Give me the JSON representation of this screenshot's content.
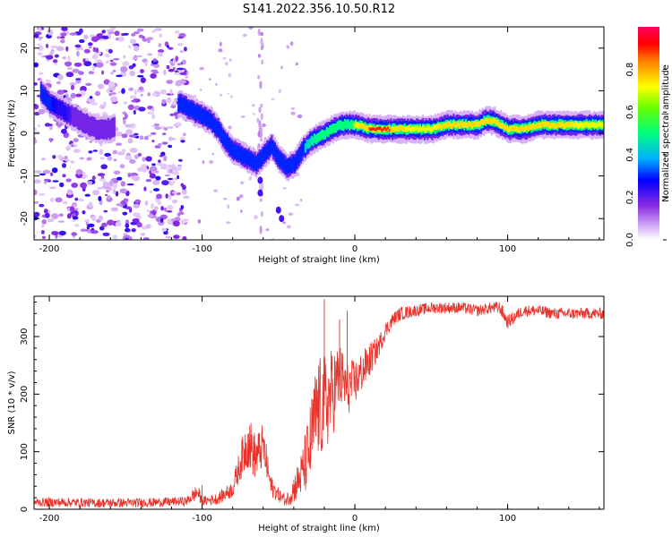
{
  "title": "S141.2022.356.10.50.R12",
  "chart_data": [
    {
      "type": "heatmap",
      "xlabel": "Height of straight line (km)",
      "ylabel": "Frequency (Hz)",
      "xlim": [
        -210,
        163
      ],
      "ylim": [
        -25,
        25
      ],
      "xticks": [
        -200,
        -100,
        0,
        100
      ],
      "yticks": [
        -20,
        -10,
        0,
        10,
        20
      ],
      "colorbar": {
        "label": "Normalized spectral amplitude",
        "range": [
          0,
          1
        ],
        "ticks": [
          0.0,
          0.2,
          0.4,
          0.6,
          0.8
        ],
        "tick_labels": [
          "0.0",
          "0.2",
          "0.4",
          "0.6",
          "0.8"
        ]
      },
      "ridge": {
        "description": "frequency of peak spectral amplitude vs height",
        "x": [
          -207,
          -200,
          -195,
          -190,
          -185,
          -180,
          -175,
          -170,
          -165,
          -160,
          -115,
          -110,
          -105,
          -100,
          -95,
          -90,
          -85,
          -80,
          -75,
          -70,
          -65,
          -60,
          -55,
          -50,
          -45,
          -40,
          -35,
          -30,
          -25,
          -20,
          -15,
          -10,
          -5,
          0,
          10,
          20,
          30,
          40,
          50,
          60,
          70,
          80,
          85,
          90,
          95,
          100,
          110,
          120,
          130,
          140,
          150,
          163
        ],
        "freq": [
          10,
          7,
          6,
          5,
          4,
          3,
          2,
          1,
          1,
          1,
          7,
          6,
          5,
          4,
          3,
          1,
          -2,
          -4,
          -5,
          -6,
          -7,
          -5,
          -3,
          -6,
          -8,
          -7,
          -4,
          -2,
          -1,
          0,
          1,
          2,
          2,
          2,
          1,
          1,
          1,
          1,
          1,
          2,
          2,
          2,
          3,
          3,
          2,
          1,
          1,
          2,
          2,
          2,
          2,
          2
        ],
        "amplitude": [
          0.3,
          0.3,
          0.25,
          0.25,
          0.2,
          0.2,
          0.2,
          0.2,
          0.2,
          0.2,
          0.35,
          0.4,
          0.4,
          0.4,
          0.35,
          0.35,
          0.35,
          0.4,
          0.4,
          0.4,
          0.35,
          0.35,
          0.35,
          0.3,
          0.3,
          0.3,
          0.4,
          0.45,
          0.5,
          0.55,
          0.6,
          0.6,
          0.6,
          0.7,
          0.9,
          0.9,
          0.75,
          0.7,
          0.7,
          0.8,
          0.85,
          0.75,
          0.85,
          0.85,
          0.75,
          0.75,
          0.75,
          0.8,
          0.8,
          0.75,
          0.7,
          0.7
        ]
      },
      "noise_region_x": [
        -210,
        -110
      ]
    },
    {
      "type": "line",
      "xlabel": "Height of straight line (km)",
      "ylabel": "SNR (10 * v/v)",
      "xlim": [
        -210,
        163
      ],
      "ylim": [
        0,
        370
      ],
      "xticks": [
        -200,
        -100,
        0,
        100
      ],
      "yticks": [
        0,
        100,
        200,
        300
      ],
      "series": [
        {
          "name": "SNR",
          "color": "#e8322a",
          "x": [
            -210,
            -190,
            -170,
            -150,
            -130,
            -110,
            -103,
            -100,
            -90,
            -80,
            -75,
            -70,
            -65,
            -60,
            -55,
            -50,
            -45,
            -40,
            -35,
            -30,
            -25,
            -20,
            -15,
            -10,
            -5,
            0,
            5,
            10,
            15,
            20,
            25,
            30,
            40,
            50,
            60,
            70,
            80,
            90,
            95,
            100,
            110,
            120,
            130,
            140,
            150,
            163
          ],
          "y": [
            12,
            12,
            11,
            11,
            12,
            14,
            30,
            14,
            18,
            35,
            80,
            120,
            90,
            110,
            40,
            25,
            15,
            35,
            60,
            100,
            170,
            180,
            200,
            230,
            210,
            220,
            240,
            260,
            280,
            310,
            330,
            340,
            345,
            350,
            350,
            350,
            345,
            350,
            350,
            325,
            345,
            345,
            340,
            340,
            340,
            340
          ],
          "spread": [
            8,
            8,
            8,
            8,
            8,
            8,
            15,
            8,
            10,
            15,
            30,
            50,
            40,
            40,
            20,
            12,
            10,
            25,
            40,
            70,
            90,
            90,
            80,
            60,
            50,
            40,
            35,
            30,
            20,
            15,
            12,
            12,
            10,
            10,
            10,
            10,
            10,
            10,
            12,
            12,
            10,
            10,
            10,
            10,
            10,
            10
          ],
          "spike_x": [
            -100,
            -20,
            -10,
            -5
          ],
          "spike_y": [
            42,
            365,
            330,
            345
          ]
        }
      ]
    }
  ]
}
